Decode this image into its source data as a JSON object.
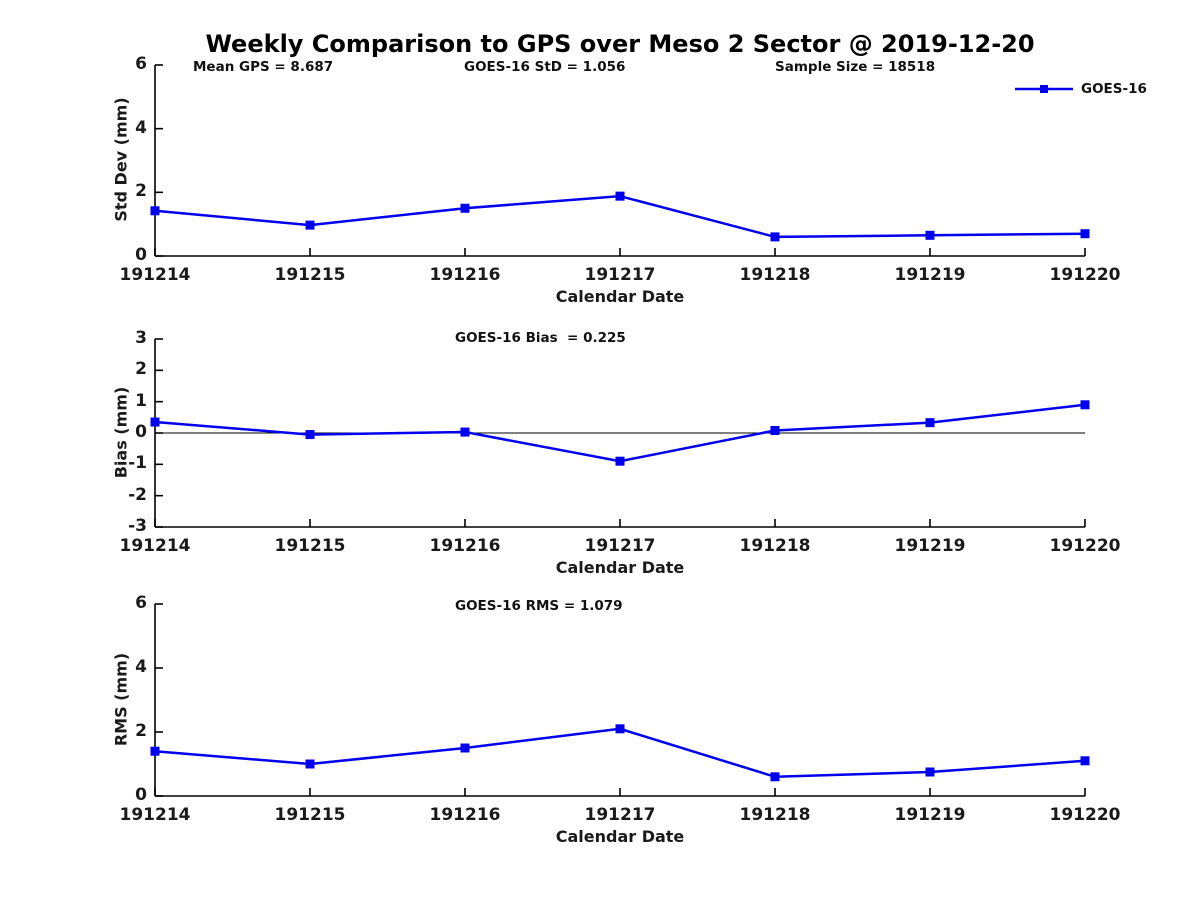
{
  "title": "Weekly Comparison to GPS over Meso 2 Sector @ 2019-12-20",
  "legend": {
    "label": "GOES-16"
  },
  "colors": {
    "series": "#0000ee",
    "axis": "#000000",
    "text": "#1a1a1a"
  },
  "chart_data": [
    {
      "type": "line",
      "annotations": [
        "Mean GPS = 8.687",
        "GOES-16 StD = 1.056",
        "Sample Size = 18518"
      ],
      "categories": [
        "191214",
        "191215",
        "191216",
        "191217",
        "191218",
        "191219",
        "191220"
      ],
      "series": [
        {
          "name": "GOES-16",
          "color": "#0000ee",
          "marker": "square",
          "values": [
            1.42,
            0.97,
            1.5,
            1.88,
            0.6,
            0.65,
            0.7
          ]
        }
      ],
      "xlabel": "Calendar Date",
      "ylabel": "Std Dev (mm)",
      "ylim": [
        0,
        6
      ],
      "yticks": [
        0,
        2,
        4,
        6
      ],
      "grid": false,
      "zero_line": false,
      "legend_position": "top-right-outside"
    },
    {
      "type": "line",
      "annotations": [
        "GOES-16 Bias  = 0.225"
      ],
      "categories": [
        "191214",
        "191215",
        "191216",
        "191217",
        "191218",
        "191219",
        "191220"
      ],
      "series": [
        {
          "name": "GOES-16",
          "color": "#0000ee",
          "marker": "square",
          "values": [
            0.35,
            -0.05,
            0.03,
            -0.9,
            0.08,
            0.33,
            0.9
          ]
        }
      ],
      "xlabel": "Calendar Date",
      "ylabel": "Bias (mm)",
      "ylim": [
        -3,
        3
      ],
      "yticks": [
        3,
        2,
        1,
        0,
        -1,
        -2,
        -3
      ],
      "grid": false,
      "zero_line": true
    },
    {
      "type": "line",
      "annotations": [
        "GOES-16 RMS = 1.079"
      ],
      "categories": [
        "191214",
        "191215",
        "191216",
        "191217",
        "191218",
        "191219",
        "191220"
      ],
      "series": [
        {
          "name": "GOES-16",
          "color": "#0000ee",
          "marker": "square",
          "values": [
            1.4,
            1.0,
            1.5,
            2.1,
            0.6,
            0.75,
            1.1
          ]
        }
      ],
      "xlabel": "Calendar Date",
      "ylabel": "RMS (mm)",
      "ylim": [
        0,
        6
      ],
      "yticks": [
        0,
        2,
        4,
        6
      ],
      "grid": false,
      "zero_line": false
    }
  ]
}
